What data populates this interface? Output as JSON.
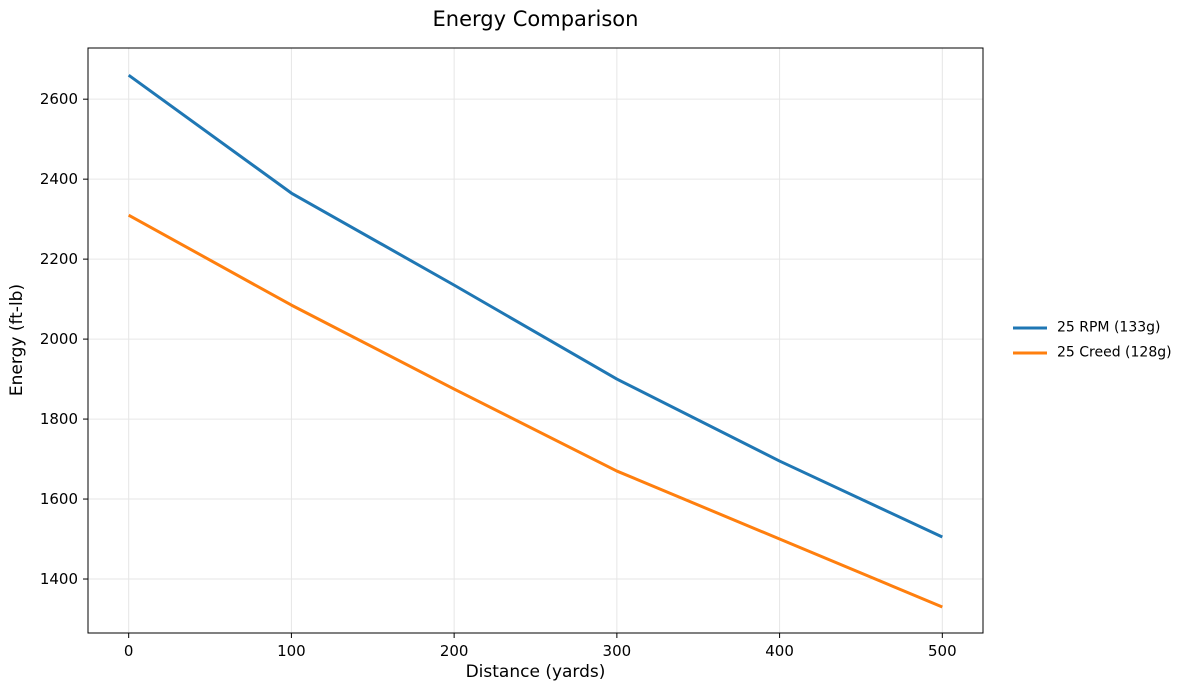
{
  "chart_data": {
    "type": "line",
    "title": "Energy Comparison",
    "xlabel": "Distance (yards)",
    "ylabel": "Energy (ft-lb)",
    "x": [
      0,
      100,
      200,
      300,
      400,
      500
    ],
    "series": [
      {
        "name": "25 RPM (133g)",
        "color": "#1f77b4",
        "values": [
          2660,
          2365,
          2135,
          1900,
          1695,
          1505
        ]
      },
      {
        "name": "25 Creed (128g)",
        "color": "#ff7f0e",
        "values": [
          2310,
          2085,
          1875,
          1670,
          1500,
          1330
        ]
      }
    ],
    "xticks": [
      0,
      100,
      200,
      300,
      400,
      500
    ],
    "yticks": [
      1400,
      1600,
      1800,
      2000,
      2200,
      2400,
      2600
    ],
    "xlim": [
      -25,
      525
    ],
    "ylim": [
      1265,
      2728
    ],
    "grid": true,
    "grid_color": "#e6e6e6",
    "spine_color": "#000000",
    "legend_position": "right-outside"
  }
}
